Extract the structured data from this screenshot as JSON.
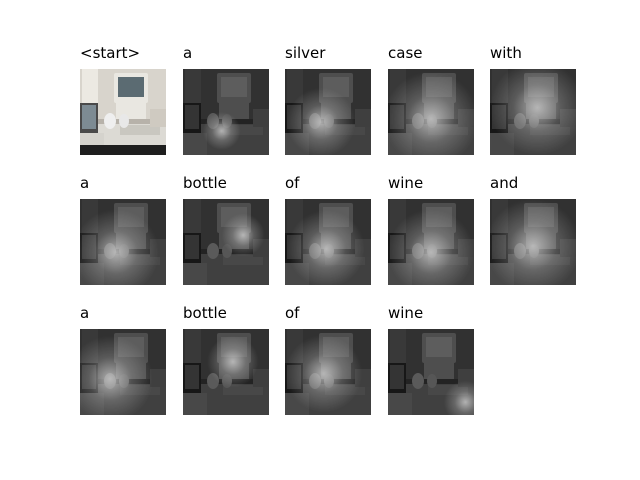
{
  "captions": [
    "<start>",
    "a",
    "silver",
    "case",
    "with",
    "a",
    "bottle",
    "of",
    "wine",
    "and",
    "a",
    "bottle",
    "of",
    "wine"
  ]
}
